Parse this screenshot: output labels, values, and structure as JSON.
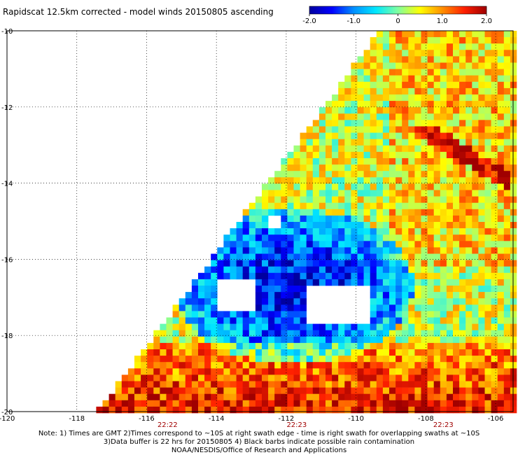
{
  "title": "Rapidscat 12.5km corrected - model winds 20150805 ascending",
  "colorbar": {
    "ticks": [
      "-2.0",
      "-1.0",
      "0",
      "1.0",
      "2.0"
    ],
    "range": [
      -2.0,
      2.0
    ],
    "colors": [
      "#0000a0",
      "#0000ff",
      "#0090ff",
      "#00e8ff",
      "#80ffa0",
      "#ffff00",
      "#ff9000",
      "#ff2000",
      "#a00000"
    ]
  },
  "map": {
    "lon_ticks": [
      "-120",
      "-118",
      "-116",
      "-114",
      "-112",
      "-110",
      "-108",
      "-106"
    ],
    "lat_ticks": [
      "-10",
      "-12",
      "-14",
      "-16",
      "-18",
      "-20"
    ],
    "lon_range": [
      -120,
      -105.5
    ],
    "lat_range": [
      -20,
      -10
    ],
    "time_labels": [
      {
        "text": "22:22",
        "lon": -115.4
      },
      {
        "text": "22:23",
        "lon": -111.7
      },
      {
        "text": "22:23",
        "lon": -107.5
      }
    ],
    "grid": "dotted"
  },
  "notes": [
    "Note: 1) Times are GMT 2)Times correspond to ~10S at right swath edge - time is right swath for overlapping swaths at ~10S",
    "3)Data buffer is 22 hrs for 20150805 4) Black barbs indicate possible rain contamination",
    "NOAA/NESDIS/Office of Research and Applications"
  ]
}
